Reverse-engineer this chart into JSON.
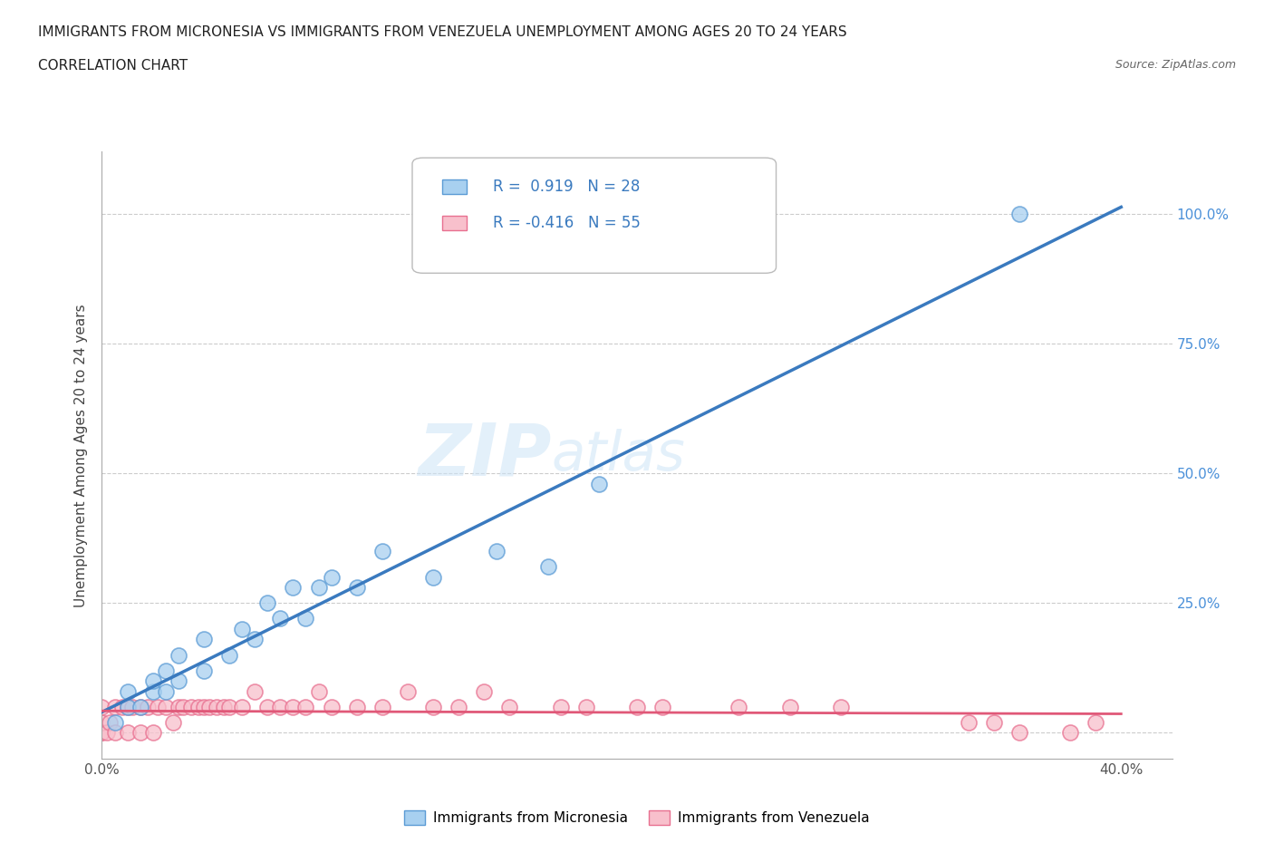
{
  "title_line1": "IMMIGRANTS FROM MICRONESIA VS IMMIGRANTS FROM VENEZUELA UNEMPLOYMENT AMONG AGES 20 TO 24 YEARS",
  "title_line2": "CORRELATION CHART",
  "source": "Source: ZipAtlas.com",
  "ylabel": "Unemployment Among Ages 20 to 24 years",
  "watermark_zip": "ZIP",
  "watermark_atlas": "atlas",
  "micronesia_fill": "#a8d0f0",
  "micronesia_edge": "#5b9bd5",
  "venezuela_fill": "#f8c0cc",
  "venezuela_edge": "#e87090",
  "micronesia_line_color": "#3a7abf",
  "venezuela_line_color": "#e05878",
  "R_micro": 0.919,
  "N_micro": 28,
  "R_venez": -0.416,
  "N_venez": 55,
  "xlim": [
    0.0,
    0.42
  ],
  "ylim": [
    -0.05,
    1.12
  ],
  "micronesia_x": [
    0.005,
    0.01,
    0.01,
    0.015,
    0.02,
    0.02,
    0.025,
    0.025,
    0.03,
    0.03,
    0.04,
    0.04,
    0.05,
    0.055,
    0.06,
    0.065,
    0.07,
    0.075,
    0.08,
    0.085,
    0.09,
    0.1,
    0.11,
    0.13,
    0.155,
    0.175,
    0.195,
    0.36
  ],
  "micronesia_y": [
    0.02,
    0.05,
    0.08,
    0.05,
    0.08,
    0.1,
    0.08,
    0.12,
    0.1,
    0.15,
    0.12,
    0.18,
    0.15,
    0.2,
    0.18,
    0.25,
    0.22,
    0.28,
    0.22,
    0.28,
    0.3,
    0.28,
    0.35,
    0.3,
    0.35,
    0.32,
    0.48,
    1.0
  ],
  "venezuela_x": [
    0.0,
    0.0,
    0.0,
    0.0,
    0.002,
    0.003,
    0.005,
    0.005,
    0.008,
    0.01,
    0.01,
    0.012,
    0.015,
    0.015,
    0.018,
    0.02,
    0.022,
    0.025,
    0.028,
    0.03,
    0.032,
    0.035,
    0.038,
    0.04,
    0.042,
    0.045,
    0.048,
    0.05,
    0.055,
    0.06,
    0.065,
    0.07,
    0.075,
    0.08,
    0.085,
    0.09,
    0.1,
    0.11,
    0.12,
    0.13,
    0.14,
    0.15,
    0.16,
    0.18,
    0.19,
    0.21,
    0.22,
    0.25,
    0.27,
    0.29,
    0.34,
    0.35,
    0.36,
    0.38,
    0.39
  ],
  "venezuela_y": [
    0.0,
    0.0,
    0.02,
    0.05,
    0.0,
    0.02,
    0.0,
    0.05,
    0.05,
    0.0,
    0.05,
    0.05,
    0.0,
    0.05,
    0.05,
    0.0,
    0.05,
    0.05,
    0.02,
    0.05,
    0.05,
    0.05,
    0.05,
    0.05,
    0.05,
    0.05,
    0.05,
    0.05,
    0.05,
    0.08,
    0.05,
    0.05,
    0.05,
    0.05,
    0.08,
    0.05,
    0.05,
    0.05,
    0.08,
    0.05,
    0.05,
    0.08,
    0.05,
    0.05,
    0.05,
    0.05,
    0.05,
    0.05,
    0.05,
    0.05,
    0.02,
    0.02,
    0.0,
    0.0,
    0.02
  ]
}
